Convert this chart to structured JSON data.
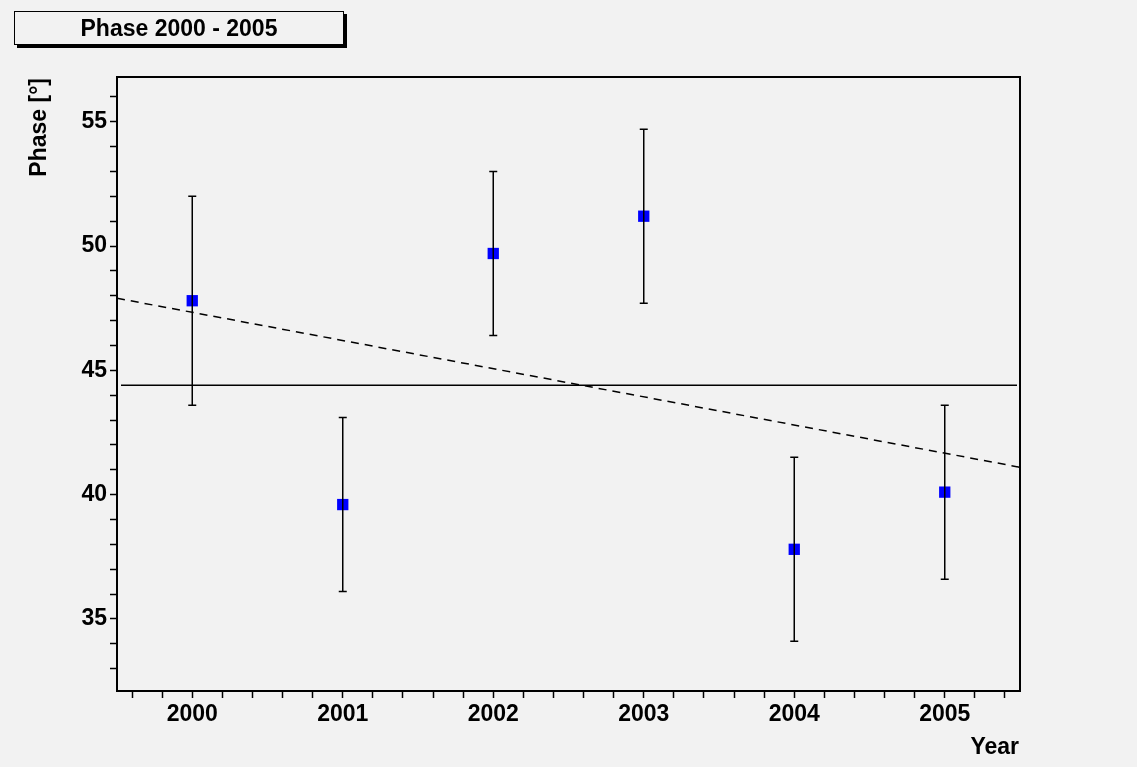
{
  "chart_data": {
    "type": "scatter",
    "title": "Phase 2000 - 2005",
    "xlabel": "Year",
    "ylabel": "Phase [°]",
    "xlim": [
      1999.5,
      2005.5
    ],
    "ylim": [
      32.1,
      56.8
    ],
    "xticks": [
      {
        "value": 1999.6,
        "label": null
      },
      {
        "value": 1999.8,
        "label": null
      },
      2000,
      {
        "value": 2000.2,
        "label": null
      },
      {
        "value": 2000.4,
        "label": null
      },
      {
        "value": 2000.6,
        "label": null
      },
      {
        "value": 2000.8,
        "label": null
      },
      2001,
      {
        "value": 2001.2,
        "label": null
      },
      {
        "value": 2001.4,
        "label": null
      },
      {
        "value": 2001.6,
        "label": null
      },
      {
        "value": 2001.8,
        "label": null
      },
      2002,
      {
        "value": 2002.2,
        "label": null
      },
      {
        "value": 2002.4,
        "label": null
      },
      {
        "value": 2002.6,
        "label": null
      },
      {
        "value": 2002.8,
        "label": null
      },
      2003,
      {
        "value": 2003.2,
        "label": null
      },
      {
        "value": 2003.4,
        "label": null
      },
      {
        "value": 2003.6,
        "label": null
      },
      {
        "value": 2003.8,
        "label": null
      },
      2004,
      {
        "value": 2004.2,
        "label": null
      },
      {
        "value": 2004.4,
        "label": null
      },
      {
        "value": 2004.6,
        "label": null
      },
      {
        "value": 2004.8,
        "label": null
      },
      2005,
      {
        "value": 2005.2,
        "label": null
      },
      {
        "value": 2005.4,
        "label": null
      }
    ],
    "yticks": [
      {
        "value": 33,
        "label": null
      },
      {
        "value": 34,
        "label": null
      },
      35,
      {
        "value": 36,
        "label": null
      },
      {
        "value": 37,
        "label": null
      },
      {
        "value": 38,
        "label": null
      },
      {
        "value": 39,
        "label": null
      },
      40,
      {
        "value": 41,
        "label": null
      },
      {
        "value": 42,
        "label": null
      },
      {
        "value": 43,
        "label": null
      },
      {
        "value": 44,
        "label": null
      },
      45,
      {
        "value": 46,
        "label": null
      },
      {
        "value": 47,
        "label": null
      },
      {
        "value": 48,
        "label": null
      },
      {
        "value": 49,
        "label": null
      },
      50,
      {
        "value": 51,
        "label": null
      },
      {
        "value": 52,
        "label": null
      },
      {
        "value": 53,
        "label": null
      },
      {
        "value": 54,
        "label": null
      },
      55,
      {
        "value": 56,
        "label": null
      }
    ],
    "grid": false,
    "legend": false,
    "ref_lines": [
      {
        "axis": "y",
        "value": 44.4,
        "color": "#000000",
        "line_style": "solid"
      }
    ],
    "series": [
      {
        "color": "#0000ff",
        "marker": "square",
        "x": [
          2000,
          2001,
          2002,
          2003,
          2004,
          2005
        ],
        "values": [
          47.8,
          39.6,
          49.7,
          51.2,
          37.8,
          40.1
        ],
        "errors": [
          4.2,
          3.5,
          3.3,
          3.5,
          3.7,
          3.5
        ]
      },
      {
        "type": "line",
        "color": "#000000",
        "marker": "none",
        "line_style": "dashed",
        "x": [
          1999.5,
          2005.5
        ],
        "values": [
          47.9,
          41.1
        ]
      }
    ]
  }
}
